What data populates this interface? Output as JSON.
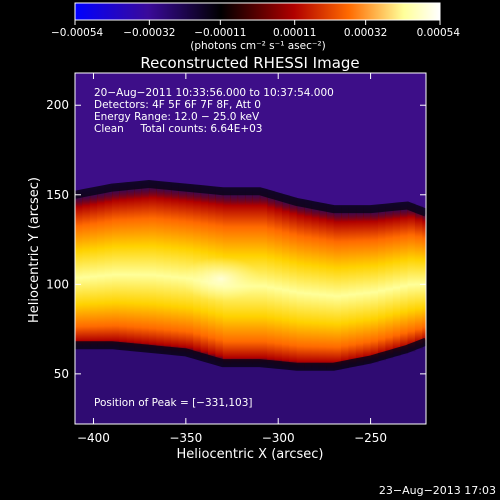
{
  "chart_data": {
    "type": "heatmap",
    "title": "Reconstructed RHESSI Image",
    "xlabel": "Heliocentric X (arcsec)",
    "ylabel": "Heliocentric Y (arcsec)",
    "xlim": [
      -410,
      -220
    ],
    "ylim": [
      22,
      218
    ],
    "x_ticks": [
      -400,
      -350,
      -300,
      -250
    ],
    "x_tick_labels": [
      "−400",
      "−350",
      "−300",
      "−250"
    ],
    "y_ticks": [
      50,
      100,
      150,
      200
    ],
    "y_tick_labels": [
      "50",
      "100",
      "150",
      "200"
    ],
    "colorbar": {
      "min": -0.00054,
      "max": 0.00054,
      "ticks": [
        -0.00054,
        -0.00032,
        -0.00011,
        0.00011,
        0.00032,
        0.00054
      ],
      "tick_labels": [
        "−0.00054",
        "−0.00032",
        "−0.00011",
        "0.00011",
        "0.00032",
        "0.00054"
      ],
      "unit_label": "(photons cm⁻² s⁻¹ asec⁻²)",
      "stops": [
        "#0000ff",
        "#3a0a9a",
        "#000000",
        "#b00000",
        "#ff6a00",
        "#ffff99",
        "#ffffff"
      ]
    },
    "annotations": [
      "20−Aug−2011 10:33:56.000 to 10:37:54.000",
      "Detectors: 4F 5F 6F 7F 8F, Att 0",
      "Energy Range: 12.0 − 25.0 keV",
      "Clean     Total counts: 6.64E+03"
    ],
    "peak_label": "Position of Peak = [−331,103]",
    "peak": [
      -331,
      103
    ],
    "source_band": {
      "x": [
        -410,
        -390,
        -370,
        -350,
        -330,
        -310,
        -290,
        -270,
        -250,
        -230,
        -220
      ],
      "y_center": [
        108,
        110,
        110,
        108,
        104,
        104,
        100,
        98,
        100,
        104,
        104
      ],
      "half_width": [
        36,
        38,
        40,
        40,
        42,
        42,
        40,
        38,
        36,
        34,
        30
      ]
    }
  },
  "footer": {
    "date": "23−Aug−2013 17:03"
  }
}
